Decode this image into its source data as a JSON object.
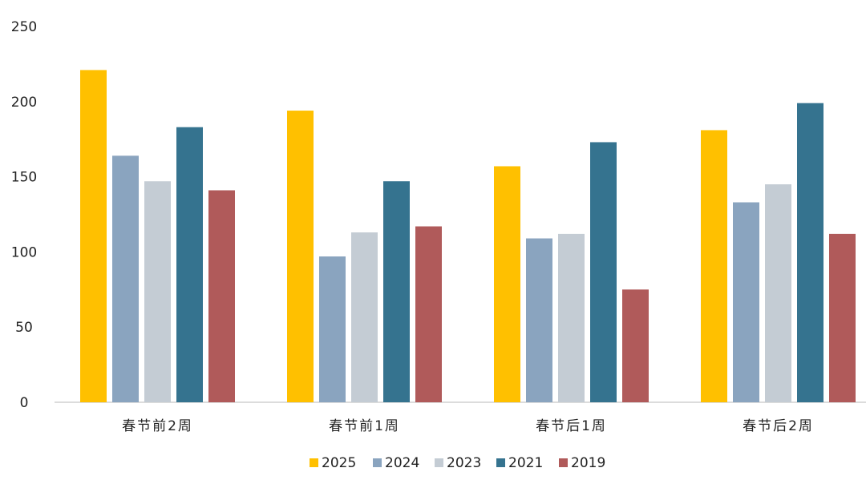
{
  "chart_data": {
    "type": "bar",
    "categories": [
      "春节前2周",
      "春节前1周",
      "春节后1周",
      "春节后2周"
    ],
    "series": [
      {
        "name": "2025",
        "color": "#FFC000",
        "values": [
          221,
          194,
          157,
          181
        ]
      },
      {
        "name": "2024",
        "color": "#8AA4BF",
        "values": [
          164,
          97,
          109,
          133
        ]
      },
      {
        "name": "2023",
        "color": "#C4CCD4",
        "values": [
          147,
          113,
          112,
          145
        ]
      },
      {
        "name": "2021",
        "color": "#35738F",
        "values": [
          183,
          147,
          173,
          199
        ]
      },
      {
        "name": "2019",
        "color": "#B05A5A",
        "values": [
          141,
          117,
          75,
          112
        ]
      }
    ],
    "yticks": [
      0,
      50,
      100,
      150,
      200,
      250
    ],
    "ylim": [
      0,
      250
    ],
    "grid": false,
    "legend_position": "bottom-center"
  }
}
